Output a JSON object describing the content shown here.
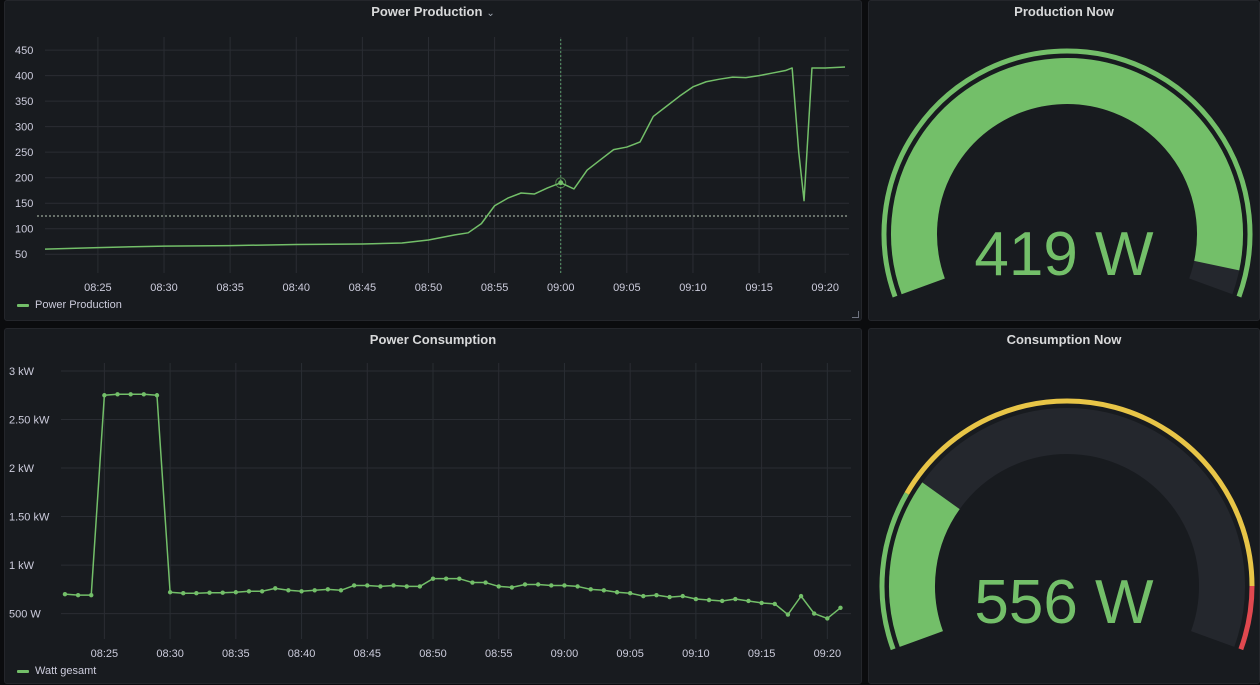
{
  "colors": {
    "green": "#73bf69",
    "yellow": "#e8c547",
    "red": "#e0484f",
    "grid": "#2a2d33",
    "axis_text": "#ccccdc",
    "threshold": "#b8c7b5"
  },
  "panels": {
    "production": {
      "title": "Power Production",
      "legend": "Power Production",
      "menu_icon": "chevron-down-icon"
    },
    "production_now": {
      "title": "Production Now",
      "value": "419 W"
    },
    "consumption": {
      "title": "Power Consumption",
      "legend": "Watt gesamt"
    },
    "consumption_now": {
      "title": "Consumption Now",
      "value": "556 W"
    }
  },
  "chart_data": [
    {
      "type": "line",
      "title": "Power Production",
      "ylim": [
        25,
        460
      ],
      "yticks": [
        50,
        100,
        150,
        200,
        250,
        300,
        350,
        400,
        450
      ],
      "ytick_labels": [
        "50",
        "100",
        "150",
        "200",
        "250",
        "300",
        "350",
        "400",
        "450"
      ],
      "x_ticks": [
        "08:25",
        "08:30",
        "08:35",
        "08:40",
        "08:45",
        "08:50",
        "08:55",
        "09:00",
        "09:05",
        "09:10",
        "09:15",
        "09:20"
      ],
      "threshold": 125,
      "cursor_time": "09:00",
      "series": [
        {
          "name": "Power Production",
          "x": [
            "08:21",
            "08:25",
            "08:30",
            "08:35",
            "08:40",
            "08:45",
            "08:48",
            "08:50",
            "08:52",
            "08:53",
            "08:54",
            "08:55",
            "08:56",
            "08:57",
            "08:58",
            "08:59",
            "09:00",
            "09:01",
            "09:02",
            "09:03",
            "09:04",
            "09:05",
            "09:06",
            "09:07",
            "09:08",
            "09:09",
            "09:10",
            "09:11",
            "09:12",
            "09:13",
            "09:14",
            "09:15",
            "09:16",
            "09:17",
            "09:17.5",
            "09:18",
            "09:18.4",
            "09:19",
            "09:20",
            "09:21.5"
          ],
          "values": [
            60,
            63,
            66,
            67,
            69,
            70,
            72,
            78,
            88,
            92,
            110,
            145,
            160,
            170,
            168,
            180,
            190,
            178,
            215,
            235,
            255,
            260,
            270,
            320,
            340,
            360,
            378,
            388,
            393,
            397,
            396,
            400,
            405,
            410,
            415,
            250,
            155,
            415,
            415,
            417
          ]
        }
      ]
    },
    {
      "type": "line",
      "title": "Power Consumption",
      "ylim": [
        300,
        3000
      ],
      "yticks": [
        500,
        1000,
        1500,
        2000,
        2500,
        3000
      ],
      "ytick_labels": [
        "500 W",
        "1 kW",
        "1.50 kW",
        "2 kW",
        "2.50 kW",
        "3 kW"
      ],
      "x_ticks": [
        "08:25",
        "08:30",
        "08:35",
        "08:40",
        "08:45",
        "08:50",
        "08:55",
        "09:00",
        "09:05",
        "09:10",
        "09:15",
        "09:20"
      ],
      "series": [
        {
          "name": "Watt gesamt",
          "x": [
            "08:22",
            "08:23",
            "08:24",
            "08:25",
            "08:26",
            "08:27",
            "08:28",
            "08:29",
            "08:30",
            "08:31",
            "08:32",
            "08:33",
            "08:34",
            "08:35",
            "08:36",
            "08:37",
            "08:38",
            "08:39",
            "08:40",
            "08:41",
            "08:42",
            "08:43",
            "08:44",
            "08:45",
            "08:46",
            "08:47",
            "08:48",
            "08:49",
            "08:50",
            "08:51",
            "08:52",
            "08:53",
            "08:54",
            "08:55",
            "08:56",
            "08:57",
            "08:58",
            "08:59",
            "09:00",
            "09:01",
            "09:02",
            "09:03",
            "09:04",
            "09:05",
            "09:06",
            "09:07",
            "09:08",
            "09:09",
            "09:10",
            "09:11",
            "09:12",
            "09:13",
            "09:14",
            "09:15",
            "09:16",
            "09:17",
            "09:18",
            "09:19",
            "09:20",
            "09:21"
          ],
          "values": [
            700,
            690,
            690,
            2750,
            2760,
            2760,
            2760,
            2750,
            720,
            710,
            710,
            715,
            715,
            720,
            730,
            730,
            760,
            740,
            730,
            740,
            750,
            740,
            790,
            790,
            780,
            790,
            780,
            780,
            860,
            860,
            860,
            820,
            820,
            780,
            770,
            800,
            800,
            790,
            790,
            780,
            750,
            740,
            720,
            710,
            680,
            690,
            670,
            680,
            650,
            640,
            630,
            650,
            630,
            610,
            600,
            490,
            680,
            500,
            450,
            560
          ]
        }
      ]
    }
  ],
  "gauges": [
    {
      "name": "production",
      "value": 419,
      "min": 0,
      "max": 435,
      "thresholds": [
        {
          "color": "green",
          "from": 0
        }
      ]
    },
    {
      "name": "consumption",
      "value": 556,
      "min": 0,
      "max": 2200,
      "thresholds": [
        {
          "color": "green",
          "from": 0
        },
        {
          "color": "yellow",
          "from": 500
        },
        {
          "color": "red",
          "from": 2000
        }
      ]
    }
  ]
}
